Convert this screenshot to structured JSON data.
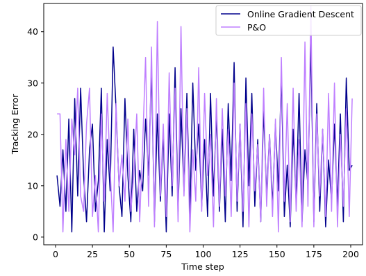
{
  "chart_data": {
    "type": "line",
    "title": "",
    "xlabel": "Time step",
    "ylabel": "Tracking Error",
    "xlim": [
      -8,
      208
    ],
    "ylim": [
      -1.5,
      45.5
    ],
    "xticks": [
      0,
      25,
      50,
      75,
      100,
      125,
      150,
      175,
      200
    ],
    "yticks": [
      0,
      10,
      20,
      30,
      40
    ],
    "grid": false,
    "legend_position": "top-right",
    "series": [
      {
        "name": "Online Gradient Descent",
        "color": "#00008b",
        "x": [
          1,
          3,
          5,
          7,
          9,
          11,
          13,
          15,
          17,
          19,
          21,
          23,
          25,
          27,
          29,
          31,
          33,
          35,
          37,
          39,
          41,
          43,
          45,
          47,
          49,
          51,
          53,
          55,
          57,
          59,
          61,
          63,
          65,
          67,
          69,
          71,
          73,
          75,
          77,
          79,
          81,
          83,
          85,
          87,
          89,
          91,
          93,
          95,
          97,
          99,
          101,
          103,
          105,
          107,
          109,
          111,
          113,
          115,
          117,
          119,
          121,
          123,
          125,
          127,
          129,
          131,
          133,
          135,
          137,
          139,
          141,
          143,
          145,
          147,
          149,
          151,
          153,
          155,
          157,
          159,
          161,
          163,
          165,
          167,
          169,
          171,
          173,
          175,
          177,
          179,
          181,
          183,
          185,
          187,
          189,
          191,
          193,
          195,
          197,
          199,
          201
        ],
        "values": [
          12,
          6,
          17,
          5,
          23,
          1,
          27,
          8,
          29,
          12,
          3,
          17,
          22,
          5,
          11,
          29,
          1,
          19,
          9,
          37,
          25,
          10,
          4,
          27,
          12,
          3,
          21,
          5,
          13,
          9,
          23,
          12,
          33,
          3,
          24,
          7,
          20,
          1,
          24,
          8,
          33,
          5,
          25,
          9,
          28,
          4,
          30,
          13,
          22,
          6,
          19,
          4,
          28,
          8,
          24,
          5,
          21,
          3,
          26,
          11,
          34,
          5,
          22,
          2,
          31,
          10,
          28,
          6,
          19,
          3,
          25,
          8,
          20,
          6,
          22,
          9,
          32,
          4,
          14,
          2,
          21,
          7,
          28,
          3,
          17,
          10,
          38,
          3,
          26,
          5,
          21,
          2,
          15,
          7,
          22,
          6,
          24,
          3,
          31,
          13,
          14
        ]
      },
      {
        "name": "P&O",
        "color": "#bf7fff",
        "x": [
          1,
          3,
          5,
          7,
          9,
          11,
          13,
          15,
          17,
          19,
          21,
          23,
          25,
          27,
          29,
          31,
          33,
          35,
          37,
          39,
          41,
          43,
          45,
          47,
          49,
          51,
          53,
          55,
          57,
          59,
          61,
          63,
          65,
          67,
          69,
          71,
          73,
          75,
          77,
          79,
          81,
          83,
          85,
          87,
          89,
          91,
          93,
          95,
          97,
          99,
          101,
          103,
          105,
          107,
          109,
          111,
          113,
          115,
          117,
          119,
          121,
          123,
          125,
          127,
          129,
          131,
          133,
          135,
          137,
          139,
          141,
          143,
          145,
          147,
          149,
          151,
          153,
          155,
          157,
          159,
          161,
          163,
          165,
          167,
          169,
          171,
          173,
          175,
          177,
          179,
          181,
          183,
          185,
          187,
          189,
          191,
          193,
          195,
          197,
          199,
          201
        ],
        "values": [
          24,
          24,
          1,
          19,
          5,
          23,
          16,
          29,
          8,
          5,
          22,
          29,
          4,
          12,
          1,
          24,
          7,
          28,
          13,
          1,
          26,
          10,
          16,
          7,
          23,
          5,
          12,
          24,
          3,
          18,
          35,
          6,
          37,
          2,
          42,
          8,
          22,
          4,
          32,
          10,
          29,
          3,
          41,
          8,
          25,
          1,
          17,
          7,
          33,
          5,
          28,
          12,
          20,
          2,
          27,
          6,
          25,
          8,
          21,
          4,
          30,
          7,
          22,
          5,
          26,
          2,
          24,
          9,
          18,
          3,
          29,
          6,
          20,
          4,
          23,
          1,
          35,
          7,
          26,
          3,
          29,
          5,
          19,
          2,
          38,
          6,
          45,
          2,
          24,
          8,
          21,
          4,
          28,
          5,
          30,
          2,
          20,
          6,
          25,
          4,
          27
        ]
      }
    ]
  }
}
